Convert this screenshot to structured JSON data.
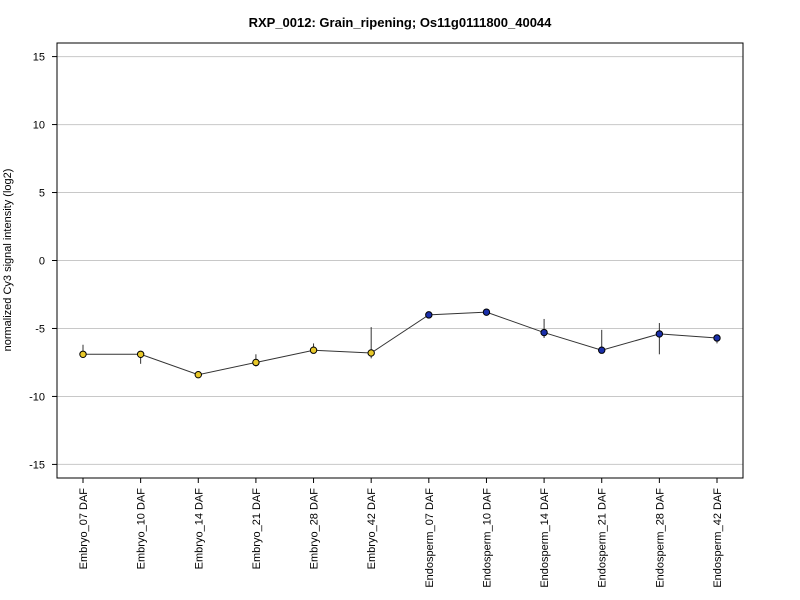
{
  "chart_data": {
    "type": "line",
    "title": "RXP_0012: Grain_ripening; Os11g0111800_40044",
    "xlabel": "",
    "ylabel": "normalized Cy3 signal intensity (log2)",
    "ylim": [
      -16,
      16
    ],
    "yticks": [
      -15,
      -10,
      -5,
      0,
      5,
      10,
      15
    ],
    "grid": true,
    "categories": [
      "Embryo_07 DAF",
      "Embryo_10 DAF",
      "Embryo_14 DAF",
      "Embryo_21 DAF",
      "Embryo_28 DAF",
      "Embryo_42 DAF",
      "Endosperm_07 DAF",
      "Endosperm_10 DAF",
      "Endosperm_14 DAF",
      "Endosperm_21 DAF",
      "Endosperm_28 DAF",
      "Endosperm_42 DAF"
    ],
    "series": [
      {
        "values": [
          -6.9,
          -6.9,
          -8.4,
          -7.5,
          -6.6,
          -6.8,
          -4.0,
          -3.8,
          -5.3,
          -6.6,
          -5.4,
          -5.7
        ],
        "err_low": [
          -7.0,
          -7.6,
          -8.5,
          -7.8,
          -6.7,
          -7.2,
          -4.1,
          -3.9,
          -5.7,
          -6.7,
          -6.9,
          -6.1
        ],
        "err_high": [
          -6.2,
          -6.7,
          -8.3,
          -6.9,
          -6.1,
          -4.9,
          -3.9,
          -3.6,
          -4.3,
          -5.1,
          -4.6,
          -5.5
        ],
        "marker_colors": [
          "#e8c829",
          "#e8c829",
          "#e8c829",
          "#e8c829",
          "#e8c829",
          "#e8c829",
          "#1a2faa",
          "#1a2faa",
          "#1a2faa",
          "#1a2faa",
          "#1a2faa",
          "#1a2faa"
        ]
      }
    ]
  }
}
